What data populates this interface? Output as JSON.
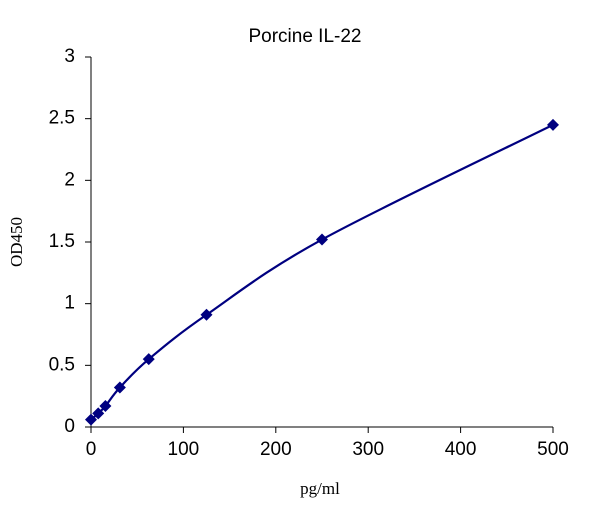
{
  "chart_data": {
    "type": "scatter",
    "title": "Porcine IL-22",
    "x_label": "pg/ml",
    "y_label": "OD450",
    "x": [
      0,
      7.8,
      15.6,
      31.25,
      62.5,
      125,
      250,
      500
    ],
    "values": [
      0.06,
      0.11,
      0.17,
      0.32,
      0.55,
      0.91,
      1.52,
      2.45
    ],
    "color": "#000080",
    "smooth_line": true,
    "xlim": [
      0,
      500
    ],
    "xticks": [
      0,
      100,
      200,
      300,
      400,
      500
    ],
    "ylim": [
      0,
      3
    ],
    "yticks": [
      0,
      0.5,
      1,
      1.5,
      2,
      2.5,
      3
    ],
    "grid": false
  }
}
